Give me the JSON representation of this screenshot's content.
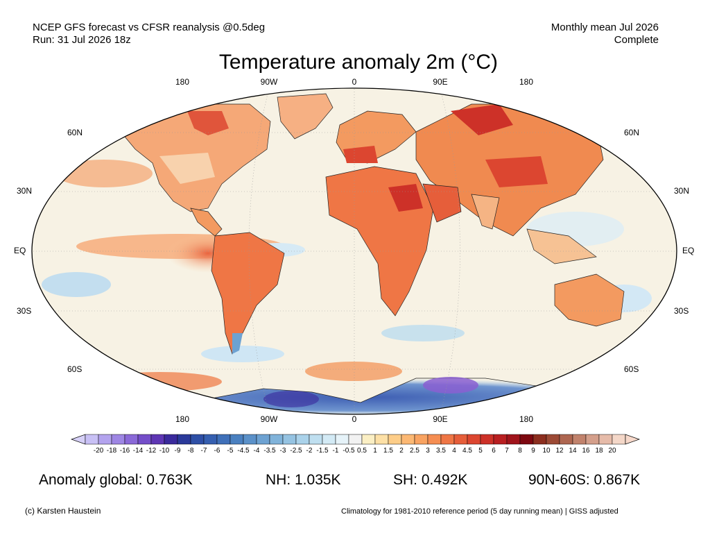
{
  "header": {
    "left_line1": "NCEP GFS forecast vs CFSR reanalysis @0.5deg",
    "left_line2": "Run: 31 Jul 2026 18z",
    "right_line1": "Monthly mean Jul 2026",
    "right_line2": "Complete"
  },
  "title": "Temperature anomaly 2m (°C)",
  "map": {
    "lon_labels": [
      "180",
      "90W",
      "0",
      "90E",
      "180"
    ],
    "lat_labels_left": [
      "60N",
      "30N",
      "EQ",
      "30S",
      "60S"
    ],
    "lat_labels_right": [
      "60N",
      "30N",
      "EQ",
      "30S",
      "60S"
    ],
    "colors": {
      "ocean": "#f7f2e4",
      "warm": "#f28a50",
      "hot": "#d9362b",
      "cool": "#b8dcef",
      "cold": "#4f6fbf",
      "very_cold": "#8a5fd1",
      "border": "#222222"
    }
  },
  "colorbar": {
    "labels": [
      "-20",
      "-18",
      "-16",
      "-14",
      "-12",
      "-10",
      "-9",
      "-8",
      "-7",
      "-6",
      "-5",
      "-4.5",
      "-4",
      "-3.5",
      "-3",
      "-2.5",
      "-2",
      "-1.5",
      "-1",
      "-0.5",
      "0.5",
      "1",
      "1.5",
      "2",
      "2.5",
      "3",
      "3.5",
      "4",
      "4.5",
      "5",
      "6",
      "7",
      "8",
      "9",
      "10",
      "12",
      "14",
      "16",
      "18",
      "20"
    ],
    "colors": [
      "#c8c0f5",
      "#b3a3ee",
      "#9e86e4",
      "#8a69d8",
      "#744ec9",
      "#5e36b4",
      "#3a2a9c",
      "#2b3a9a",
      "#2e4fa6",
      "#355fb0",
      "#3f70b9",
      "#4a80c0",
      "#5b91c9",
      "#6da2d2",
      "#80b3da",
      "#95c3e2",
      "#aad2ea",
      "#bfdff0",
      "#d3eaf5",
      "#e6f3f9",
      "#f2f2f2",
      "#fbefc4",
      "#fde0a6",
      "#fdcd88",
      "#fcb873",
      "#f9a361",
      "#f58d52",
      "#ef7645",
      "#e65e3a",
      "#dc4630",
      "#cd3128",
      "#b91f21",
      "#a0141b",
      "#7d0810",
      "#8c2e1f",
      "#9c4a35",
      "#ae6650",
      "#c1826c",
      "#d49f8b",
      "#e6bba9",
      "#f4d7c8"
    ],
    "under_color": "#d6d0f7",
    "over_color": "#f7d9cb"
  },
  "stats": {
    "global": "Anomaly global: 0.763K",
    "nh": "NH: 1.035K",
    "sh": "SH: 0.492K",
    "arctic": "90N-60S: 0.867K"
  },
  "footer": {
    "left": "(c) Karsten Haustein",
    "right": "Climatology for 1981-2010 reference period (5 day running mean) | GISS adjusted"
  }
}
